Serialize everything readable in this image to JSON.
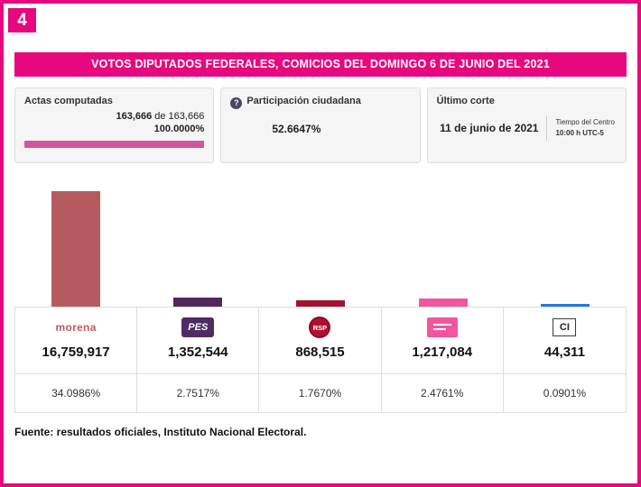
{
  "page": {
    "figure_number": "4",
    "banner": "VOTOS DIPUTADOS FEDERALES, COMICIOS DEL DOMINGO 6 DE JUNIO DEL 2021",
    "source": "Fuente: resultados oficiales, Instituto Nacional Electoral.",
    "accent_color": "#e7077e"
  },
  "stats": {
    "actas": {
      "label": "Actas computadas",
      "count": "163,666",
      "of_total": "de 163,666",
      "percent": "100.0000%",
      "progress_percent": 100,
      "progress_color": "#d4549e"
    },
    "participacion": {
      "label": "Participación ciudadana",
      "help_glyph": "?",
      "value": "52.6647%"
    },
    "corte": {
      "label": "Último corte",
      "date": "11 de junio de 2021",
      "tz_line1": "Tiempo del Centro",
      "tz_line2": "10:00 h UTC-5"
    }
  },
  "parties": [
    {
      "id": "morena",
      "logo_text": "morena",
      "votes": "16,759,917",
      "percent": "34.0986%"
    },
    {
      "id": "pes",
      "logo_text": "PES",
      "votes": "1,352,544",
      "percent": "2.7517%"
    },
    {
      "id": "rsp",
      "logo_text": "RSP",
      "votes": "868,515",
      "percent": "1.7670%"
    },
    {
      "id": "fxm",
      "logo_text": "",
      "votes": "1,217,084",
      "percent": "2.4761%"
    },
    {
      "id": "ci",
      "logo_text": "CI",
      "votes": "44,311",
      "percent": "0.0901%"
    }
  ],
  "chart_data": {
    "type": "bar",
    "title": "VOTOS DIPUTADOS FEDERALES, COMICIOS DEL DOMINGO 6 DE JUNIO DEL 2021",
    "categories": [
      "morena",
      "PES",
      "RSP",
      "Fuerza por México",
      "CI"
    ],
    "values": [
      16759917,
      1352544,
      868515,
      1217084,
      44311
    ],
    "value_labels": [
      "16,759,917",
      "1,352,544",
      "868,515",
      "1,217,084",
      "44,311"
    ],
    "percents": [
      34.0986,
      2.7517,
      1.767,
      2.4761,
      0.0901
    ],
    "colors": [
      "#b55a5e",
      "#52265e",
      "#a3112e",
      "#f0569f",
      "#2479e2"
    ],
    "ylim": [
      0,
      16759917
    ],
    "grid": false,
    "legend": "none"
  }
}
